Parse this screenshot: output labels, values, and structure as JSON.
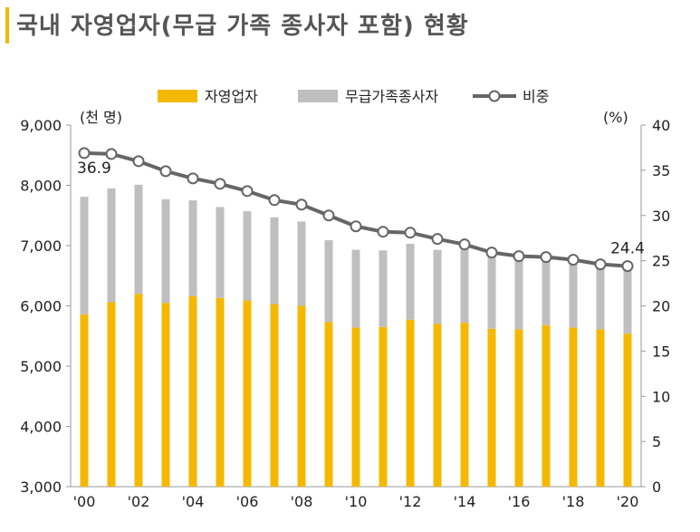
{
  "title": "국내 자영업자(무급 가족 종사자 포함) 현황",
  "chart_data": {
    "type": "bar",
    "stacked": true,
    "title": "국내 자영업자(무급 가족 종사자 포함) 현황",
    "left_unit": "(천 명)",
    "right_unit": "(%)",
    "years": [
      "2000",
      "2001",
      "2002",
      "2003",
      "2004",
      "2005",
      "2006",
      "2007",
      "2008",
      "2009",
      "2010",
      "2011",
      "2012",
      "2013",
      "2014",
      "2015",
      "2016",
      "2017",
      "2018",
      "2019",
      "2020"
    ],
    "x_tick_labels": [
      "'00",
      "'02",
      "'04",
      "'06",
      "'08",
      "'10",
      "'12",
      "'14",
      "'16",
      "'18",
      "'20"
    ],
    "y_left": {
      "min": 3000,
      "max": 9000,
      "ticks": [
        "3,000",
        "4,000",
        "5,000",
        "6,000",
        "7,000",
        "8,000",
        "9,000"
      ],
      "tick_values": [
        3000,
        4000,
        5000,
        6000,
        7000,
        8000,
        9000
      ]
    },
    "y_right": {
      "min": 0,
      "max": 40,
      "ticks": [
        "0",
        "5",
        "10",
        "15",
        "20",
        "25",
        "30",
        "35",
        "40"
      ],
      "tick_values": [
        0,
        5,
        10,
        15,
        20,
        25,
        30,
        35,
        40
      ]
    },
    "series": [
      {
        "name": "자영업자",
        "kind": "bar",
        "color": "#f5b800",
        "values": [
          5860,
          6060,
          6200,
          6050,
          6160,
          6130,
          6090,
          6030,
          6000,
          5730,
          5640,
          5650,
          5770,
          5700,
          5720,
          5620,
          5610,
          5680,
          5640,
          5610,
          5540
        ]
      },
      {
        "name": "무급가족종사자",
        "kind": "bar",
        "color": "#bfbfbf",
        "values": [
          1950,
          1890,
          1810,
          1720,
          1590,
          1510,
          1480,
          1440,
          1400,
          1360,
          1290,
          1270,
          1260,
          1230,
          1230,
          1200,
          1180,
          1110,
          1090,
          1070,
          1070
        ]
      },
      {
        "name": "비중",
        "kind": "line",
        "color": "#666666",
        "axis": "right",
        "values": [
          36.9,
          36.8,
          36.0,
          34.9,
          34.1,
          33.5,
          32.7,
          31.7,
          31.2,
          30.0,
          28.8,
          28.2,
          28.1,
          27.4,
          26.8,
          25.9,
          25.5,
          25.4,
          25.1,
          24.6,
          24.4
        ]
      }
    ],
    "data_labels": [
      {
        "index": 0,
        "text": "36.9"
      },
      {
        "index": 20,
        "text": "24.4"
      }
    ],
    "legend": {
      "position": "top",
      "labels": [
        "자영업자",
        "무급가족종사자",
        "비중"
      ]
    }
  }
}
